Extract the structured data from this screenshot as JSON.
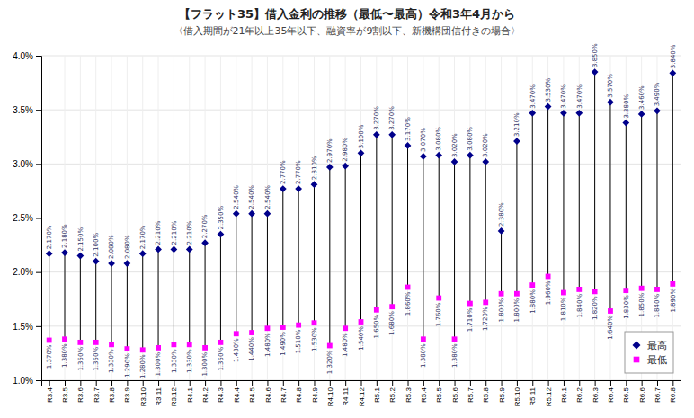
{
  "chart_data": {
    "type": "dumbbell",
    "title": "【フラット35】借入金利の推移（最低〜最高）令和3年4月から",
    "subtitle": "〈借入期間が21年以上35年以下、融資率が9割以下、新機構団信付きの場合〉",
    "categories": [
      "R3.4",
      "R3.5",
      "R3.6",
      "R3.7",
      "R3.8",
      "R3.9",
      "R3.10",
      "R3.11",
      "R3.12",
      "R4.1",
      "R4.2",
      "R4.3",
      "R4.4",
      "R4.5",
      "R4.6",
      "R4.7",
      "R4.8",
      "R4.9",
      "R4.10",
      "R4.11",
      "R4.12",
      "R5.1",
      "R5.2",
      "R5.3",
      "R5.4",
      "R5.5",
      "R5.6",
      "R5.7",
      "R5.8",
      "R5.9",
      "R5.10",
      "R5.11",
      "R5.12",
      "R6.1",
      "R6.2",
      "R6.3",
      "R6.4",
      "R6.5",
      "R6.6",
      "R6.7",
      "R6.8"
    ],
    "series": [
      {
        "name": "最高",
        "color": "#00008B",
        "marker": "diamond",
        "values": [
          2.17,
          2.18,
          2.15,
          2.1,
          2.08,
          2.08,
          2.17,
          2.21,
          2.21,
          2.21,
          2.27,
          2.35,
          2.54,
          2.54,
          2.54,
          2.77,
          2.77,
          2.81,
          2.97,
          2.98,
          3.1,
          3.27,
          3.27,
          3.17,
          3.07,
          3.08,
          3.02,
          3.08,
          3.02,
          2.38,
          3.21,
          3.47,
          3.53,
          3.47,
          3.47,
          3.85,
          3.57,
          3.38,
          3.46,
          3.49,
          3.84
        ],
        "value_labels": [
          "2.170%",
          "2.180%",
          "2.150%",
          "2.100%",
          "2.080%",
          "2.080%",
          "2.170%",
          "2.210%",
          "2.210%",
          "2.210%",
          "2.270%",
          "2.350%",
          "2.540%",
          "2.540%",
          "2.540%",
          "2.770%",
          "2.770%",
          "2.810%",
          "2.970%",
          "2.980%",
          "3.100%",
          "3.270%",
          "3.270%",
          "3.170%",
          "3.070%",
          "3.080%",
          "3.020%",
          "3.080%",
          "3.020%",
          "2.380%",
          "3.210%",
          "3.470%",
          "3.530%",
          "3.470%",
          "3.470%",
          "3.850%",
          "3.570%",
          "3.380%",
          "3.460%",
          "3.490%",
          "3.840%"
        ]
      },
      {
        "name": "最低",
        "color": "#FF00FF",
        "marker": "square",
        "values": [
          1.37,
          1.38,
          1.35,
          1.35,
          1.33,
          1.29,
          1.28,
          1.3,
          1.33,
          1.33,
          1.3,
          1.35,
          1.43,
          1.44,
          1.48,
          1.49,
          1.51,
          1.53,
          1.32,
          1.48,
          1.54,
          1.65,
          1.68,
          1.86,
          1.38,
          1.76,
          1.38,
          1.71,
          1.72,
          1.8,
          1.8,
          1.88,
          1.96,
          1.81,
          1.84,
          1.82,
          1.64,
          1.83,
          1.85,
          1.84,
          1.89
        ],
        "value_labels": [
          "1.370%",
          "1.380%",
          "1.350%",
          "1.350%",
          "1.330%",
          "1.290%",
          "1.280%",
          "1.300%",
          "1.330%",
          "1.330%",
          "1.300%",
          "1.350%",
          "1.430%",
          "1.440%",
          "1.480%",
          "1.490%",
          "1.510%",
          "1.530%",
          "1.320%",
          "1.480%",
          "1.540%",
          "1.650%",
          "1.680%",
          "1.860%",
          "1.380%",
          "1.760%",
          "1.380%",
          "1.710%",
          "1.720%",
          "1.800%",
          "1.800%",
          "1.880%",
          "1.960%",
          "1.810%",
          "1.840%",
          "1.820%",
          "1.640%",
          "1.830%",
          "1.850%",
          "1.840%",
          "1.890%"
        ]
      }
    ],
    "ylim": [
      1.0,
      4.0
    ],
    "yticks": [
      {
        "value": 1.0,
        "label": "1.0%"
      },
      {
        "value": 1.5,
        "label": "1.5%"
      },
      {
        "value": 2.0,
        "label": "2.0%"
      },
      {
        "value": 2.5,
        "label": "2.5%"
      },
      {
        "value": 3.0,
        "label": "3.0%"
      },
      {
        "value": 3.5,
        "label": "3.5%"
      },
      {
        "value": 4.0,
        "label": "4.0%"
      }
    ],
    "grid": true,
    "legend": "lower right",
    "data_labels": true
  }
}
